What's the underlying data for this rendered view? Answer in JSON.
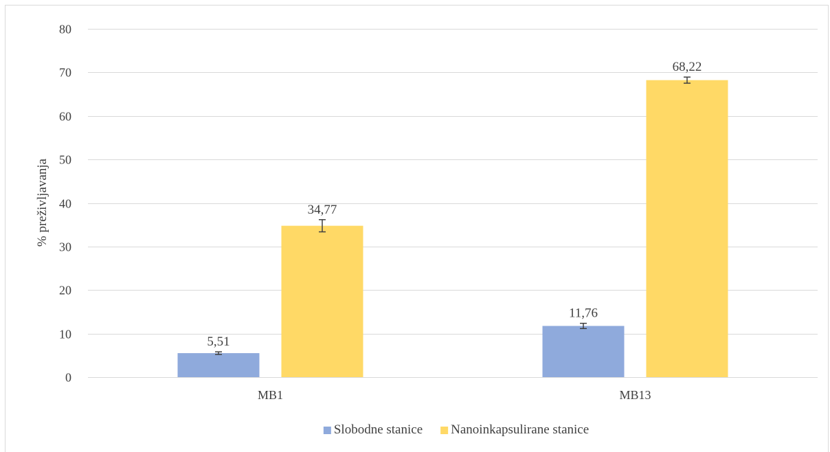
{
  "chart_data": {
    "type": "bar",
    "categories": [
      "MB1",
      "MB13"
    ],
    "series": [
      {
        "name": "Slobodne stanice",
        "color": "#8faadc",
        "values": [
          5.51,
          11.76
        ],
        "labels": [
          "5,51",
          "11,76"
        ],
        "errors": [
          0.3,
          0.6
        ]
      },
      {
        "name": "Nanoinkapsulirane stanice",
        "color": "#ffd966",
        "values": [
          34.77,
          68.22
        ],
        "labels": [
          "34,77",
          "68,22"
        ],
        "errors": [
          1.4,
          0.7
        ]
      }
    ],
    "ylabel": "% preživljavanja",
    "ylim": [
      0,
      80
    ],
    "yticks": [
      0,
      10,
      20,
      30,
      40,
      50,
      60,
      70,
      80
    ],
    "grid": true,
    "legend": "bottom",
    "colors": {
      "gridline": "#d9d9d9",
      "axis": "#d9d9d9",
      "text": "#404040",
      "errorbar": "#404040"
    }
  }
}
